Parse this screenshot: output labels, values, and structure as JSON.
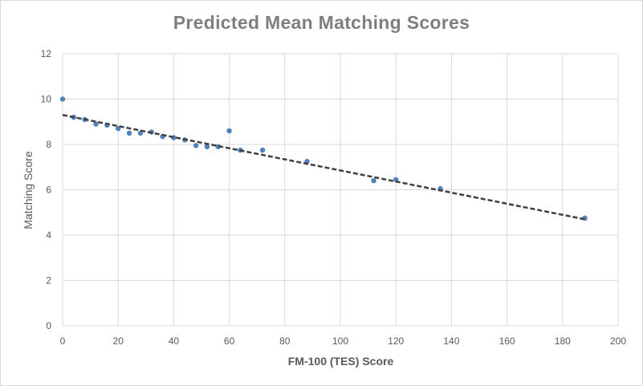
{
  "chart_data": {
    "type": "scatter",
    "title": "Predicted Mean Matching Scores",
    "xlabel": "FM-100 (TES) Score",
    "ylabel": "Matching Score",
    "xlim": [
      0,
      200
    ],
    "ylim": [
      0,
      12
    ],
    "xticks": [
      0,
      20,
      40,
      60,
      80,
      100,
      120,
      140,
      160,
      180,
      200
    ],
    "yticks": [
      0,
      2,
      4,
      6,
      8,
      10,
      12
    ],
    "grid": true,
    "legend": "none",
    "series": [
      {
        "points": [
          {
            "x": 0,
            "y": 10.0
          },
          {
            "x": 4,
            "y": 9.2
          },
          {
            "x": 8,
            "y": 9.1
          },
          {
            "x": 12,
            "y": 8.9
          },
          {
            "x": 16,
            "y": 8.85
          },
          {
            "x": 20,
            "y": 8.7
          },
          {
            "x": 24,
            "y": 8.5
          },
          {
            "x": 28,
            "y": 8.5
          },
          {
            "x": 32,
            "y": 8.55
          },
          {
            "x": 36,
            "y": 8.35
          },
          {
            "x": 40,
            "y": 8.3
          },
          {
            "x": 44,
            "y": 8.2
          },
          {
            "x": 48,
            "y": 7.95
          },
          {
            "x": 52,
            "y": 7.9
          },
          {
            "x": 56,
            "y": 7.9
          },
          {
            "x": 60,
            "y": 8.6
          },
          {
            "x": 64,
            "y": 7.75
          },
          {
            "x": 72,
            "y": 7.75
          },
          {
            "x": 88,
            "y": 7.25
          },
          {
            "x": 112,
            "y": 6.4
          },
          {
            "x": 120,
            "y": 6.45
          },
          {
            "x": 136,
            "y": 6.05
          },
          {
            "x": 188,
            "y": 4.75
          }
        ],
        "color": "#4f81bd"
      }
    ],
    "trendline": {
      "type": "linear",
      "style": "dashed",
      "color": "#404040",
      "from": {
        "x": 0,
        "y": 9.3
      },
      "to": {
        "x": 188,
        "y": 4.7
      }
    }
  }
}
